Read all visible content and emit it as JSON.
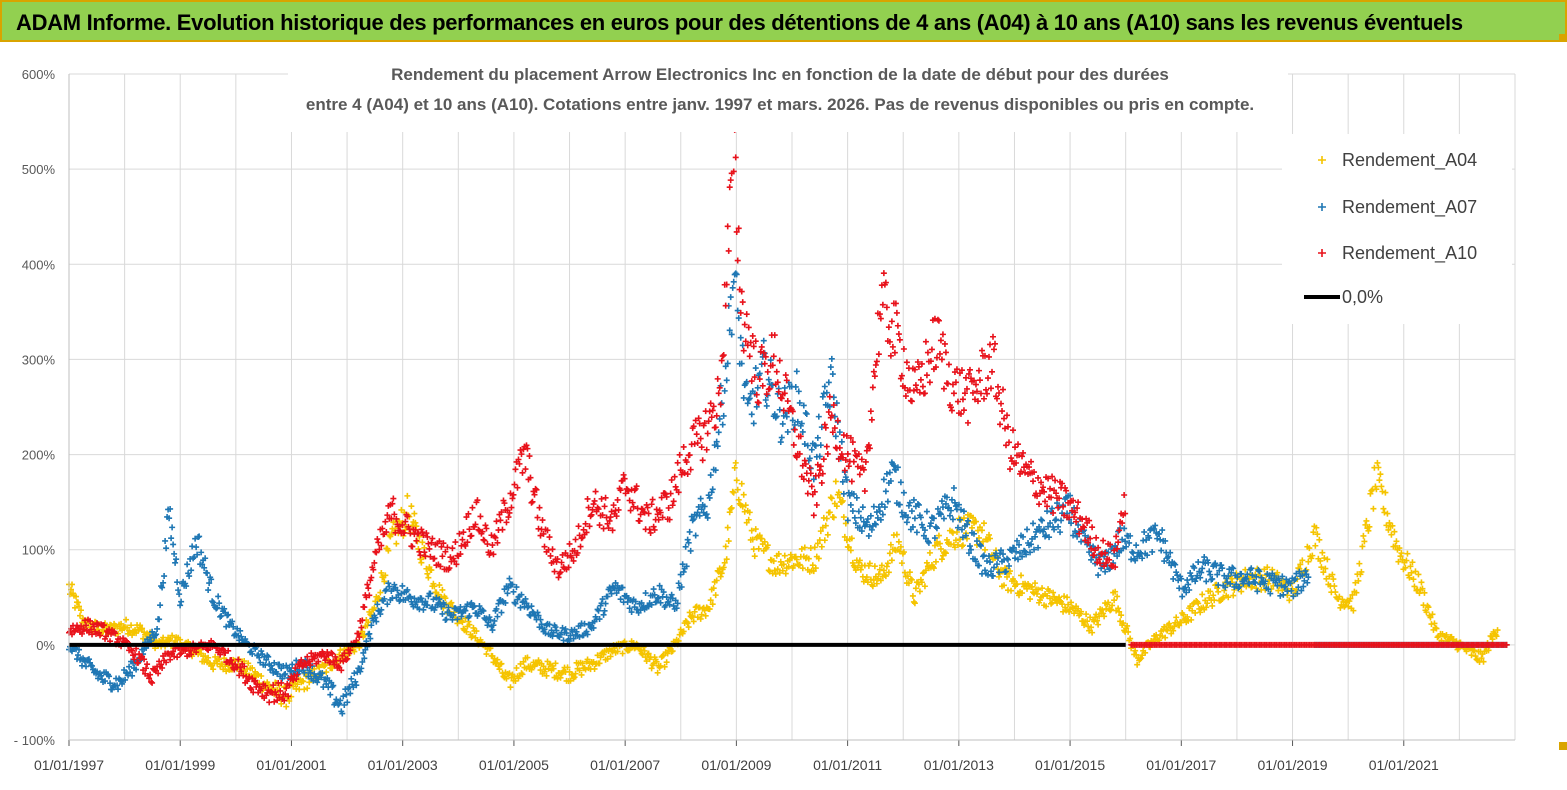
{
  "banner": {
    "title": "ADAM Informe. Evolution historique des performances en euros pour des détentions de 4 ans (A04) à 10 ans (A10) sans les revenus éventuels"
  },
  "chart_data": {
    "type": "scatter",
    "title_line1": "Rendement du placement Arrow Electronics Inc en fonction de la date de début pour des durées",
    "title_line2": "entre 4 (A04) et 10 ans (A10). Cotations entre janv. 1997 et mars. 2026. Pas de revenus disponibles ou pris en compte.",
    "xlabel": "",
    "ylabel": "",
    "x_range": [
      "1997-01-01",
      "2023-01-01"
    ],
    "ylim": [
      -100,
      600
    ],
    "y_ticks": [
      -100,
      0,
      100,
      200,
      300,
      400,
      500,
      600
    ],
    "y_tick_labels": [
      "- 100%",
      "0%",
      "100%",
      "200%",
      "300%",
      "400%",
      "500%",
      "600%"
    ],
    "x_tick_labels": [
      "01/01/1997",
      "01/01/1999",
      "01/01/2001",
      "01/01/2003",
      "01/01/2005",
      "01/01/2007",
      "01/01/2009",
      "01/01/2011",
      "01/01/2013",
      "01/01/2015",
      "01/01/2017",
      "01/01/2019",
      "01/01/2021"
    ],
    "grid": "vertical-and-horizontal",
    "legend_placement": "top-right",
    "colors": {
      "A04": "#f5c400",
      "A07": "#1f77b4",
      "A10": "#e8121b",
      "zero": "#000000"
    },
    "series": [
      {
        "name": "Rendement_A04",
        "key": "A04",
        "end": "2022.85",
        "values": [
          [
            "1997.0",
            60
          ],
          [
            "1997.3",
            20
          ],
          [
            "1997.7",
            15
          ],
          [
            "1998.0",
            20
          ],
          [
            "1998.3",
            15
          ],
          [
            "1998.6",
            0
          ],
          [
            "1998.9",
            5
          ],
          [
            "1999.2",
            -5
          ],
          [
            "1999.6",
            -20
          ],
          [
            "2000.0",
            -20
          ],
          [
            "2000.3",
            -30
          ],
          [
            "2000.6",
            -45
          ],
          [
            "2000.9",
            -55
          ],
          [
            "2001.2",
            -40
          ],
          [
            "2001.6",
            -25
          ],
          [
            "2001.9",
            -10
          ],
          [
            "2002.2",
            0
          ],
          [
            "2002.5",
            40
          ],
          [
            "2002.8",
            110
          ],
          [
            "2003.1",
            140
          ],
          [
            "2003.4",
            90
          ],
          [
            "2003.7",
            50
          ],
          [
            "2004.0",
            30
          ],
          [
            "2004.3",
            10
          ],
          [
            "2004.6",
            -10
          ],
          [
            "2004.9",
            -40
          ],
          [
            "2005.2",
            -20
          ],
          [
            "2005.6",
            -25
          ],
          [
            "2006.0",
            -30
          ],
          [
            "2006.4",
            -20
          ],
          [
            "2006.8",
            -5
          ],
          [
            "2007.2",
            0
          ],
          [
            "2007.6",
            -25
          ],
          [
            "2007.9",
            0
          ],
          [
            "2008.2",
            30
          ],
          [
            "2008.5",
            40
          ],
          [
            "2008.8",
            90
          ],
          [
            "2009.0",
            180
          ],
          [
            "2009.3",
            110
          ],
          [
            "2009.7",
            85
          ],
          [
            "2010.0",
            90
          ],
          [
            "2010.4",
            90
          ],
          [
            "2010.8",
            160
          ],
          [
            "2011.2",
            80
          ],
          [
            "2011.6",
            70
          ],
          [
            "2011.9",
            110
          ],
          [
            "2012.2",
            50
          ],
          [
            "2012.6",
            100
          ],
          [
            "2013.0",
            120
          ],
          [
            "2013.4",
            120
          ],
          [
            "2013.8",
            70
          ],
          [
            "2014.2",
            60
          ],
          [
            "2014.6",
            50
          ],
          [
            "2015.0",
            40
          ],
          [
            "2015.4",
            20
          ],
          [
            "2015.8",
            50
          ],
          [
            "2016.2",
            -15
          ],
          [
            "2016.6",
            10
          ],
          [
            "2017.0",
            25
          ],
          [
            "2017.4",
            45
          ],
          [
            "2017.8",
            60
          ],
          [
            "2018.2",
            70
          ],
          [
            "2018.6",
            70
          ],
          [
            "2019.0",
            55
          ],
          [
            "2019.4",
            115
          ],
          [
            "2019.8",
            50
          ],
          [
            "2020.1",
            45
          ],
          [
            "2020.5",
            175
          ],
          [
            "2020.9",
            100
          ],
          [
            "2021.3",
            60
          ],
          [
            "2021.6",
            10
          ],
          [
            "2022.0",
            0
          ],
          [
            "2022.4",
            -15
          ],
          [
            "2022.7",
            20
          ]
        ]
      },
      {
        "name": "Rendement_A07",
        "key": "A07",
        "end": "2019.4",
        "values": [
          [
            "1997.0",
            0
          ],
          [
            "1997.3",
            -20
          ],
          [
            "1997.6",
            -35
          ],
          [
            "1997.9",
            -40
          ],
          [
            "1998.2",
            -20
          ],
          [
            "1998.6",
            20
          ],
          [
            "1998.8",
            140
          ],
          [
            "1999.0",
            50
          ],
          [
            "1999.3",
            110
          ],
          [
            "1999.6",
            50
          ],
          [
            "1999.9",
            20
          ],
          [
            "2000.2",
            0
          ],
          [
            "2000.6",
            -20
          ],
          [
            "2000.9",
            -30
          ],
          [
            "2001.2",
            -20
          ],
          [
            "2001.6",
            -40
          ],
          [
            "2001.9",
            -65
          ],
          [
            "2002.2",
            -30
          ],
          [
            "2002.5",
            30
          ],
          [
            "2002.8",
            60
          ],
          [
            "2003.1",
            50
          ],
          [
            "2003.5",
            45
          ],
          [
            "2003.9",
            30
          ],
          [
            "2004.3",
            40
          ],
          [
            "2004.6",
            20
          ],
          [
            "2004.9",
            60
          ],
          [
            "2005.2",
            45
          ],
          [
            "2005.6",
            15
          ],
          [
            "2006.0",
            10
          ],
          [
            "2006.4",
            20
          ],
          [
            "2006.8",
            60
          ],
          [
            "2007.2",
            40
          ],
          [
            "2007.6",
            55
          ],
          [
            "2007.9",
            40
          ],
          [
            "2008.2",
            120
          ],
          [
            "2008.5",
            150
          ],
          [
            "2008.8",
            280
          ],
          [
            "2008.95",
            390
          ],
          [
            "2009.2",
            240
          ],
          [
            "2009.5",
            290
          ],
          [
            "2009.8",
            240
          ],
          [
            "2010.1",
            260
          ],
          [
            "2010.4",
            190
          ],
          [
            "2010.7",
            280
          ],
          [
            "2011.0",
            150
          ],
          [
            "2011.4",
            120
          ],
          [
            "2011.8",
            180
          ],
          [
            "2012.1",
            140
          ],
          [
            "2012.5",
            120
          ],
          [
            "2012.9",
            150
          ],
          [
            "2013.2",
            110
          ],
          [
            "2013.5",
            80
          ],
          [
            "2013.9",
            90
          ],
          [
            "2014.3",
            110
          ],
          [
            "2014.7",
            130
          ],
          [
            "2015.0",
            140
          ],
          [
            "2015.3",
            100
          ],
          [
            "2015.6",
            80
          ],
          [
            "2015.9",
            110
          ],
          [
            "2016.2",
            100
          ],
          [
            "2016.6",
            115
          ],
          [
            "2017.0",
            60
          ],
          [
            "2017.4",
            80
          ],
          [
            "2017.8",
            70
          ],
          [
            "2018.2",
            70
          ],
          [
            "2018.6",
            65
          ],
          [
            "2019.0",
            60
          ],
          [
            "2019.3",
            75
          ]
        ]
      },
      {
        "name": "Rendement_A10",
        "key": "A10",
        "end": "2016.1",
        "values": [
          [
            "1997.0",
            15
          ],
          [
            "1997.3",
            20
          ],
          [
            "1997.6",
            15
          ],
          [
            "1997.9",
            5
          ],
          [
            "1998.2",
            -10
          ],
          [
            "1998.5",
            -35
          ],
          [
            "1998.8",
            -10
          ],
          [
            "1999.2",
            -5
          ],
          [
            "1999.6",
            0
          ],
          [
            "2000.0",
            -20
          ],
          [
            "2000.3",
            -40
          ],
          [
            "2000.6",
            -50
          ],
          [
            "2000.9",
            -50
          ],
          [
            "2001.2",
            -20
          ],
          [
            "2001.6",
            -10
          ],
          [
            "2001.9",
            -20
          ],
          [
            "2002.2",
            10
          ],
          [
            "2002.5",
            90
          ],
          [
            "2002.8",
            140
          ],
          [
            "2003.1",
            120
          ],
          [
            "2003.5",
            100
          ],
          [
            "2003.9",
            90
          ],
          [
            "2004.3",
            140
          ],
          [
            "2004.6",
            100
          ],
          [
            "2004.9",
            150
          ],
          [
            "2005.2",
            200
          ],
          [
            "2005.5",
            120
          ],
          [
            "2005.8",
            80
          ],
          [
            "2006.1",
            100
          ],
          [
            "2006.4",
            150
          ],
          [
            "2006.8",
            130
          ],
          [
            "2007.0",
            170
          ],
          [
            "2007.4",
            130
          ],
          [
            "2007.8",
            150
          ],
          [
            "2008.1",
            200
          ],
          [
            "2008.4",
            220
          ],
          [
            "2008.7",
            260
          ],
          [
            "2008.95",
            520
          ],
          [
            "2009.1",
            350
          ],
          [
            "2009.4",
            280
          ],
          [
            "2009.7",
            300
          ],
          [
            "2010.0",
            230
          ],
          [
            "2010.4",
            150
          ],
          [
            "2010.7",
            240
          ],
          [
            "2011.0",
            200
          ],
          [
            "2011.3",
            170
          ],
          [
            "2011.6",
            360
          ],
          [
            "2011.9",
            320
          ],
          [
            "2012.2",
            260
          ],
          [
            "2012.6",
            320
          ],
          [
            "2012.9",
            270
          ],
          [
            "2013.2",
            260
          ],
          [
            "2013.6",
            300
          ],
          [
            "2013.9",
            210
          ],
          [
            "2014.2",
            180
          ],
          [
            "2014.6",
            160
          ],
          [
            "2014.9",
            150
          ],
          [
            "2015.2",
            130
          ],
          [
            "2015.5",
            100
          ],
          [
            "2015.8",
            90
          ],
          [
            "2016.0",
            160
          ]
        ]
      },
      {
        "name": "0,0%",
        "key": "zero",
        "values": [
          [
            "1997.0",
            0
          ],
          [
            "2023.0",
            0
          ]
        ]
      }
    ]
  }
}
